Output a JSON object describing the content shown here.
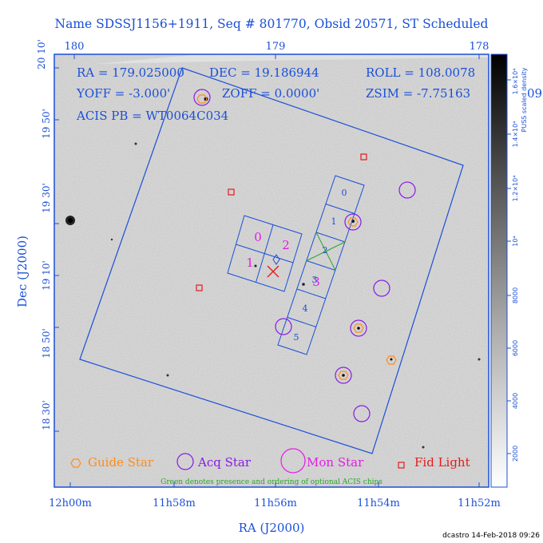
{
  "title": "Name SDSSJ1156+1911, Seq # 801770, Obsid 20571, ST Scheduled",
  "top_axis_ticks": [
    "180",
    "179",
    "178"
  ],
  "left_axis_ticks": [
    "20 10'",
    "19 50'",
    "19 30'",
    "19 10'",
    "18 50'",
    "18 30'"
  ],
  "bottom_axis_ticks": [
    "12h00m",
    "11h58m",
    "11h56m",
    "11h54m",
    "11h52m"
  ],
  "xlabel": "RA (J2000)",
  "ylabel": "Dec (J2000)",
  "info": {
    "ra": "RA = 179.025000",
    "dec": "DEC = 19.186944",
    "roll": "ROLL = 108.0078",
    "yoff": "YOFF = -3.000'",
    "zoff": "ZOFF = 0.0000'",
    "zsim": "ZSIM = -7.75163",
    "acis_pb": "ACIS PB = WT0064C034",
    "overflow": "09"
  },
  "colorbar": {
    "label": "PUSS scaled density",
    "ticks": [
      "2000",
      "4000",
      "6000",
      "8000",
      "10⁴",
      "1.2×10⁴",
      "1.4×10⁴",
      "1.6×10⁴"
    ]
  },
  "chips": {
    "i_chips": [
      "0",
      "1",
      "2",
      "3"
    ],
    "s_chips": [
      "0",
      "1",
      "2",
      "3",
      "4",
      "5"
    ]
  },
  "legend": {
    "guide": "Guide Star",
    "acq": "Acq Star",
    "mon": "Mon Star",
    "fid": "Fid Light",
    "note": "Green denotes presence and ordering of optional ACIS chips"
  },
  "footer": "dcastro 14-Feb-2018 09:26",
  "colors": {
    "axis": "#1a4fd8",
    "guide": "#ff8c1a",
    "acq": "#8a1ae6",
    "mon": "#e619e6",
    "fid": "#e61a1a",
    "optional": "#2aa52a"
  },
  "icons": {
    "guide": "hexagon-icon",
    "acq": "circle-icon",
    "mon": "large-circle-icon",
    "fid": "square-icon"
  }
}
